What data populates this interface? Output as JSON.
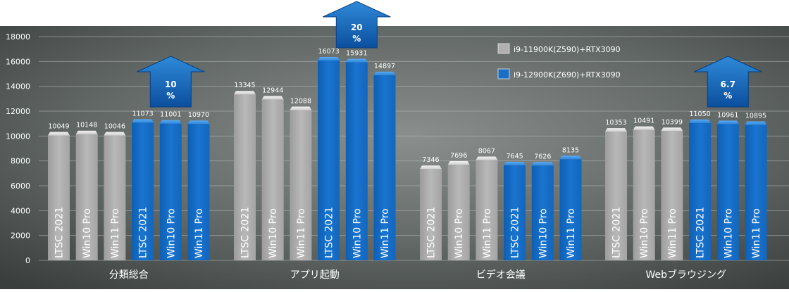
{
  "chart_data": {
    "type": "bar",
    "ylim": [
      0,
      18000
    ],
    "yticks": [
      "0",
      "2000",
      "4000",
      "6000",
      "8000",
      "10000",
      "12000",
      "14000",
      "16000",
      "18000"
    ],
    "grid": true,
    "legend_position": "top-right",
    "groups": [
      {
        "label": "分類総合",
        "bars": [
          {
            "label": "LTSC 2021",
            "value": 10049,
            "series": 0
          },
          {
            "label": "Win10 Pro",
            "value": 10148,
            "series": 0
          },
          {
            "label": "Win11 Pro",
            "value": 10046,
            "series": 0
          },
          {
            "label": "LTSC 2021",
            "value": 11073,
            "series": 1
          },
          {
            "label": "Win10 Pro",
            "value": 11001,
            "series": 1
          },
          {
            "label": "Win11 Pro",
            "value": 10970,
            "series": 1
          }
        ]
      },
      {
        "label": "アプリ起動",
        "bars": [
          {
            "label": "LTSC 2021",
            "value": 13345,
            "series": 0
          },
          {
            "label": "Win10 Pro",
            "value": 12944,
            "series": 0
          },
          {
            "label": "Win11 Pro",
            "value": 12088,
            "series": 0
          },
          {
            "label": "LTSC 2021",
            "value": 16073,
            "series": 1
          },
          {
            "label": "Win10 Pro",
            "value": 15931,
            "series": 1
          },
          {
            "label": "Win11 Pro",
            "value": 14897,
            "series": 1
          }
        ]
      },
      {
        "label": "ビデオ会議",
        "bars": [
          {
            "label": "LTSC 2021",
            "value": 7346,
            "series": 0
          },
          {
            "label": "Win10 Pro",
            "value": 7696,
            "series": 0
          },
          {
            "label": "Win11 Pro",
            "value": 8067,
            "series": 0
          },
          {
            "label": "LTSC 2021",
            "value": 7645,
            "series": 1
          },
          {
            "label": "Win10 Pro",
            "value": 7626,
            "series": 1
          },
          {
            "label": "Win11 Pro",
            "value": 8135,
            "series": 1
          }
        ]
      },
      {
        "label": "Webブラウジング",
        "bars": [
          {
            "label": "LTSC 2021",
            "value": 10353,
            "series": 0
          },
          {
            "label": "Win10 Pro",
            "value": 10491,
            "series": 0
          },
          {
            "label": "Win11 Pro",
            "value": 10399,
            "series": 0
          },
          {
            "label": "LTSC 2021",
            "value": 11050,
            "series": 1
          },
          {
            "label": "Win10 Pro",
            "value": 10961,
            "series": 1
          },
          {
            "label": "Win11 Pro",
            "value": 10895,
            "series": 1
          }
        ]
      }
    ],
    "series": [
      {
        "name": "i9-11900K(Z590)+RTX3090",
        "color": "#b0b0b0"
      },
      {
        "name": "i9-12900K(Z690)+RTX3090",
        "color": "#1a6fc4"
      }
    ],
    "annotations": [
      {
        "group": 0,
        "value": "10",
        "unit": "%"
      },
      {
        "group": 1,
        "value": "20",
        "unit": "%"
      },
      {
        "group": 3,
        "value": "6.7",
        "unit": "%"
      }
    ]
  }
}
